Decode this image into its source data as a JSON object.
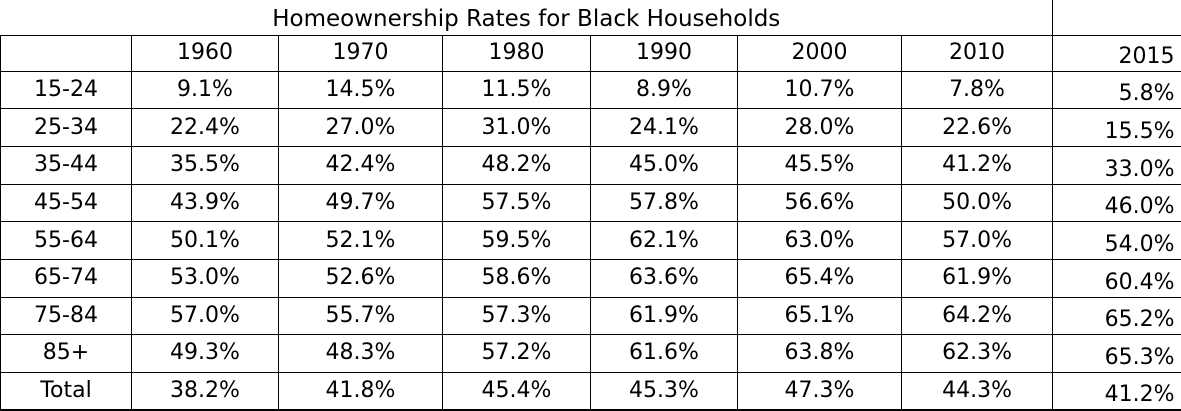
{
  "chart_data": {
    "type": "table",
    "title": "Homeownership Rates for Black Households",
    "columns": [
      "",
      "1960",
      "1970",
      "1980",
      "1990",
      "2000",
      "2010",
      "2015"
    ],
    "rows": [
      {
        "label": "15-24",
        "values": [
          "9.1%",
          "14.5%",
          "11.5%",
          "8.9%",
          "10.7%",
          "7.8%",
          "5.8%"
        ]
      },
      {
        "label": "25-34",
        "values": [
          "22.4%",
          "27.0%",
          "31.0%",
          "24.1%",
          "28.0%",
          "22.6%",
          "15.5%"
        ]
      },
      {
        "label": "35-44",
        "values": [
          "35.5%",
          "42.4%",
          "48.2%",
          "45.0%",
          "45.5%",
          "41.2%",
          "33.0%"
        ]
      },
      {
        "label": "45-54",
        "values": [
          "43.9%",
          "49.7%",
          "57.5%",
          "57.8%",
          "56.6%",
          "50.0%",
          "46.0%"
        ]
      },
      {
        "label": "55-64",
        "values": [
          "50.1%",
          "52.1%",
          "59.5%",
          "62.1%",
          "63.0%",
          "57.0%",
          "54.0%"
        ]
      },
      {
        "label": "65-74",
        "values": [
          "53.0%",
          "52.6%",
          "58.6%",
          "63.6%",
          "65.4%",
          "61.9%",
          "60.4%"
        ]
      },
      {
        "label": "75-84",
        "values": [
          "57.0%",
          "55.7%",
          "57.3%",
          "61.9%",
          "65.1%",
          "64.2%",
          "65.2%"
        ]
      },
      {
        "label": "85+",
        "values": [
          "49.3%",
          "48.3%",
          "57.2%",
          "61.6%",
          "63.8%",
          "62.3%",
          "65.3%"
        ]
      },
      {
        "label": "Total",
        "values": [
          "38.2%",
          "41.8%",
          "45.4%",
          "45.3%",
          "47.3%",
          "44.3%",
          "41.2%"
        ]
      }
    ]
  }
}
